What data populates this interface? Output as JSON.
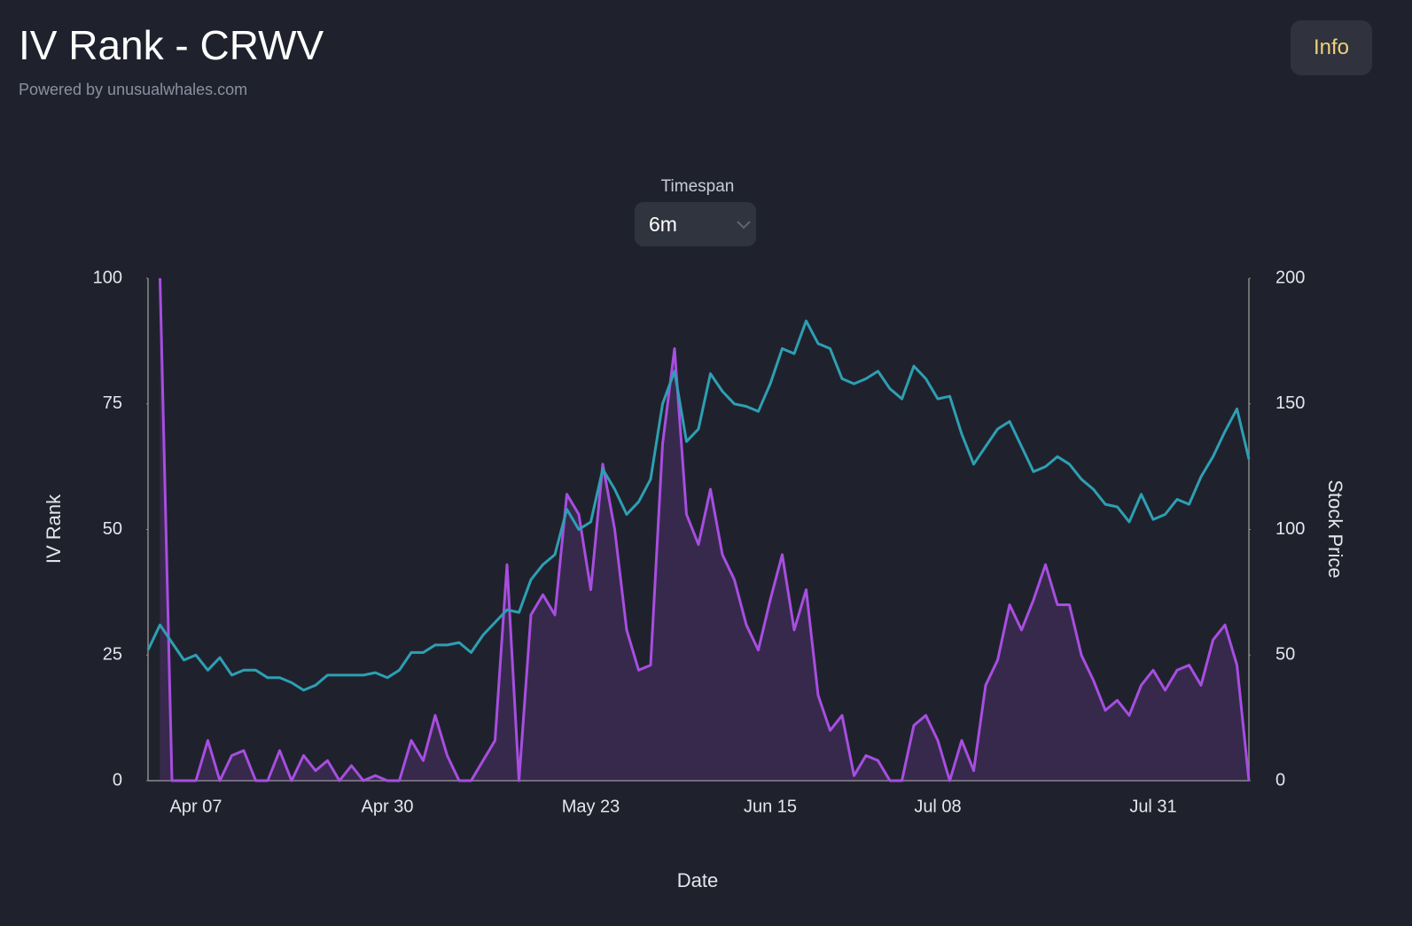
{
  "header": {
    "title": "IV Rank - CRWV",
    "subtitle": "Powered by unusualwhales.com",
    "button": "Info"
  },
  "controls": {
    "label": "Timespan",
    "value": "6m"
  },
  "chart_data": {
    "type": "line",
    "xlabel": "Date",
    "ylabel": "IV Rank",
    "y2label": "Stock Price",
    "categories": [
      null,
      null,
      null,
      null,
      "Apr 07",
      null,
      null,
      null,
      null,
      null,
      null,
      null,
      null,
      null,
      null,
      null,
      null,
      null,
      null,
      null,
      "Apr 30",
      null,
      null,
      null,
      null,
      null,
      null,
      null,
      null,
      null,
      null,
      null,
      null,
      null,
      null,
      null,
      null,
      "May 23",
      null,
      null,
      null,
      null,
      null,
      null,
      null,
      null,
      null,
      null,
      null,
      null,
      null,
      null,
      "Jun 15",
      null,
      null,
      null,
      null,
      null,
      null,
      null,
      null,
      null,
      null,
      null,
      null,
      null,
      "Jul 08",
      null,
      null,
      null,
      null,
      null,
      null,
      null,
      null,
      null,
      null,
      null,
      null,
      null,
      null,
      null,
      null,
      null,
      "Jul 31",
      null,
      null,
      null,
      null,
      null,
      null,
      null,
      null
    ],
    "series": [
      {
        "color": "#a74ee0",
        "fill": true,
        "values": [
          null,
          100,
          0,
          0,
          0,
          8,
          0,
          5,
          6,
          0,
          0,
          6,
          0,
          5,
          2,
          4,
          0,
          3,
          0,
          1,
          0,
          0,
          8,
          4,
          13,
          5,
          0,
          0,
          4,
          8,
          43,
          0,
          33,
          37,
          33,
          57,
          53,
          38,
          63,
          50,
          30,
          22,
          23,
          67,
          86,
          53,
          47,
          58,
          45,
          40,
          31,
          26,
          36,
          45,
          30,
          38,
          17,
          10,
          13,
          1,
          5,
          4,
          0,
          0,
          11,
          13,
          8,
          0,
          8,
          2,
          19,
          24,
          35,
          30,
          36,
          43,
          35,
          35,
          25,
          20,
          14,
          16,
          13,
          19,
          22,
          18,
          22,
          23,
          19,
          28,
          31,
          23,
          0
        ]
      },
      {
        "color": "#2e9fb3",
        "axis": "y2",
        "values": [
          52,
          62,
          55,
          48,
          50,
          44,
          49,
          42,
          44,
          44,
          41,
          41,
          39,
          36,
          38,
          42,
          42,
          42,
          42,
          43,
          41,
          44,
          51,
          51,
          54,
          54,
          55,
          51,
          58,
          63,
          68,
          67,
          80,
          86,
          90,
          108,
          100,
          103,
          124,
          116,
          106,
          111,
          120,
          150,
          163,
          135,
          140,
          162,
          155,
          150,
          149,
          147,
          158,
          172,
          170,
          183,
          174,
          172,
          160,
          158,
          160,
          163,
          156,
          152,
          165,
          160,
          152,
          153,
          138,
          126,
          133,
          140,
          143,
          133,
          123,
          125,
          129,
          126,
          120,
          116,
          110,
          109,
          103,
          114,
          104,
          106,
          112,
          110,
          121,
          129,
          139,
          148,
          128
        ]
      }
    ],
    "ylim": [
      0,
      100
    ],
    "yticks": [
      0,
      25,
      50,
      75,
      100
    ],
    "y2lim": [
      0,
      200
    ],
    "y2ticks": [
      0,
      50,
      100,
      150,
      200
    ]
  }
}
